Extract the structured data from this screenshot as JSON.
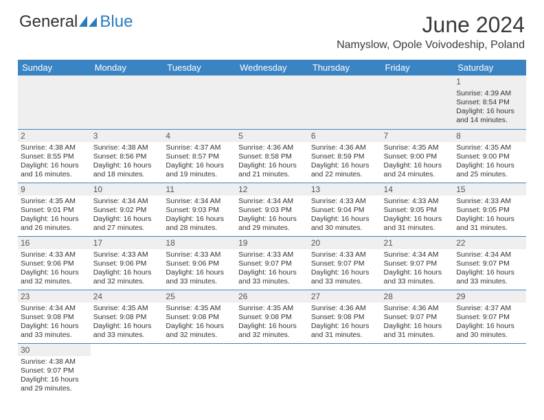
{
  "brand": {
    "part1": "General",
    "part2": "Blue"
  },
  "title": "June 2024",
  "location": "Namyslow, Opole Voivodeship, Poland",
  "weekdays": [
    "Sunday",
    "Monday",
    "Tuesday",
    "Wednesday",
    "Thursday",
    "Friday",
    "Saturday"
  ],
  "colors": {
    "header_bg": "#3b84c4",
    "header_fg": "#ffffff",
    "cell_border": "#3b84c4",
    "shade_bg": "#efefef",
    "text": "#333333"
  },
  "weeks": [
    [
      null,
      null,
      null,
      null,
      null,
      null,
      {
        "d": "1",
        "sr": "4:39 AM",
        "ss": "8:54 PM",
        "dl": "16 hours and 14 minutes."
      }
    ],
    [
      {
        "d": "2",
        "sr": "4:38 AM",
        "ss": "8:55 PM",
        "dl": "16 hours and 16 minutes."
      },
      {
        "d": "3",
        "sr": "4:38 AM",
        "ss": "8:56 PM",
        "dl": "16 hours and 18 minutes."
      },
      {
        "d": "4",
        "sr": "4:37 AM",
        "ss": "8:57 PM",
        "dl": "16 hours and 19 minutes."
      },
      {
        "d": "5",
        "sr": "4:36 AM",
        "ss": "8:58 PM",
        "dl": "16 hours and 21 minutes."
      },
      {
        "d": "6",
        "sr": "4:36 AM",
        "ss": "8:59 PM",
        "dl": "16 hours and 22 minutes."
      },
      {
        "d": "7",
        "sr": "4:35 AM",
        "ss": "9:00 PM",
        "dl": "16 hours and 24 minutes."
      },
      {
        "d": "8",
        "sr": "4:35 AM",
        "ss": "9:00 PM",
        "dl": "16 hours and 25 minutes."
      }
    ],
    [
      {
        "d": "9",
        "sr": "4:35 AM",
        "ss": "9:01 PM",
        "dl": "16 hours and 26 minutes."
      },
      {
        "d": "10",
        "sr": "4:34 AM",
        "ss": "9:02 PM",
        "dl": "16 hours and 27 minutes."
      },
      {
        "d": "11",
        "sr": "4:34 AM",
        "ss": "9:03 PM",
        "dl": "16 hours and 28 minutes."
      },
      {
        "d": "12",
        "sr": "4:34 AM",
        "ss": "9:03 PM",
        "dl": "16 hours and 29 minutes."
      },
      {
        "d": "13",
        "sr": "4:33 AM",
        "ss": "9:04 PM",
        "dl": "16 hours and 30 minutes."
      },
      {
        "d": "14",
        "sr": "4:33 AM",
        "ss": "9:05 PM",
        "dl": "16 hours and 31 minutes."
      },
      {
        "d": "15",
        "sr": "4:33 AM",
        "ss": "9:05 PM",
        "dl": "16 hours and 31 minutes."
      }
    ],
    [
      {
        "d": "16",
        "sr": "4:33 AM",
        "ss": "9:06 PM",
        "dl": "16 hours and 32 minutes."
      },
      {
        "d": "17",
        "sr": "4:33 AM",
        "ss": "9:06 PM",
        "dl": "16 hours and 32 minutes."
      },
      {
        "d": "18",
        "sr": "4:33 AM",
        "ss": "9:06 PM",
        "dl": "16 hours and 33 minutes."
      },
      {
        "d": "19",
        "sr": "4:33 AM",
        "ss": "9:07 PM",
        "dl": "16 hours and 33 minutes."
      },
      {
        "d": "20",
        "sr": "4:33 AM",
        "ss": "9:07 PM",
        "dl": "16 hours and 33 minutes."
      },
      {
        "d": "21",
        "sr": "4:34 AM",
        "ss": "9:07 PM",
        "dl": "16 hours and 33 minutes."
      },
      {
        "d": "22",
        "sr": "4:34 AM",
        "ss": "9:07 PM",
        "dl": "16 hours and 33 minutes."
      }
    ],
    [
      {
        "d": "23",
        "sr": "4:34 AM",
        "ss": "9:08 PM",
        "dl": "16 hours and 33 minutes."
      },
      {
        "d": "24",
        "sr": "4:35 AM",
        "ss": "9:08 PM",
        "dl": "16 hours and 33 minutes."
      },
      {
        "d": "25",
        "sr": "4:35 AM",
        "ss": "9:08 PM",
        "dl": "16 hours and 32 minutes."
      },
      {
        "d": "26",
        "sr": "4:35 AM",
        "ss": "9:08 PM",
        "dl": "16 hours and 32 minutes."
      },
      {
        "d": "27",
        "sr": "4:36 AM",
        "ss": "9:08 PM",
        "dl": "16 hours and 31 minutes."
      },
      {
        "d": "28",
        "sr": "4:36 AM",
        "ss": "9:07 PM",
        "dl": "16 hours and 31 minutes."
      },
      {
        "d": "29",
        "sr": "4:37 AM",
        "ss": "9:07 PM",
        "dl": "16 hours and 30 minutes."
      }
    ],
    [
      {
        "d": "30",
        "sr": "4:38 AM",
        "ss": "9:07 PM",
        "dl": "16 hours and 29 minutes."
      },
      null,
      null,
      null,
      null,
      null,
      null
    ]
  ],
  "labels": {
    "sunrise": "Sunrise: ",
    "sunset": "Sunset: ",
    "daylight": "Daylight: "
  }
}
